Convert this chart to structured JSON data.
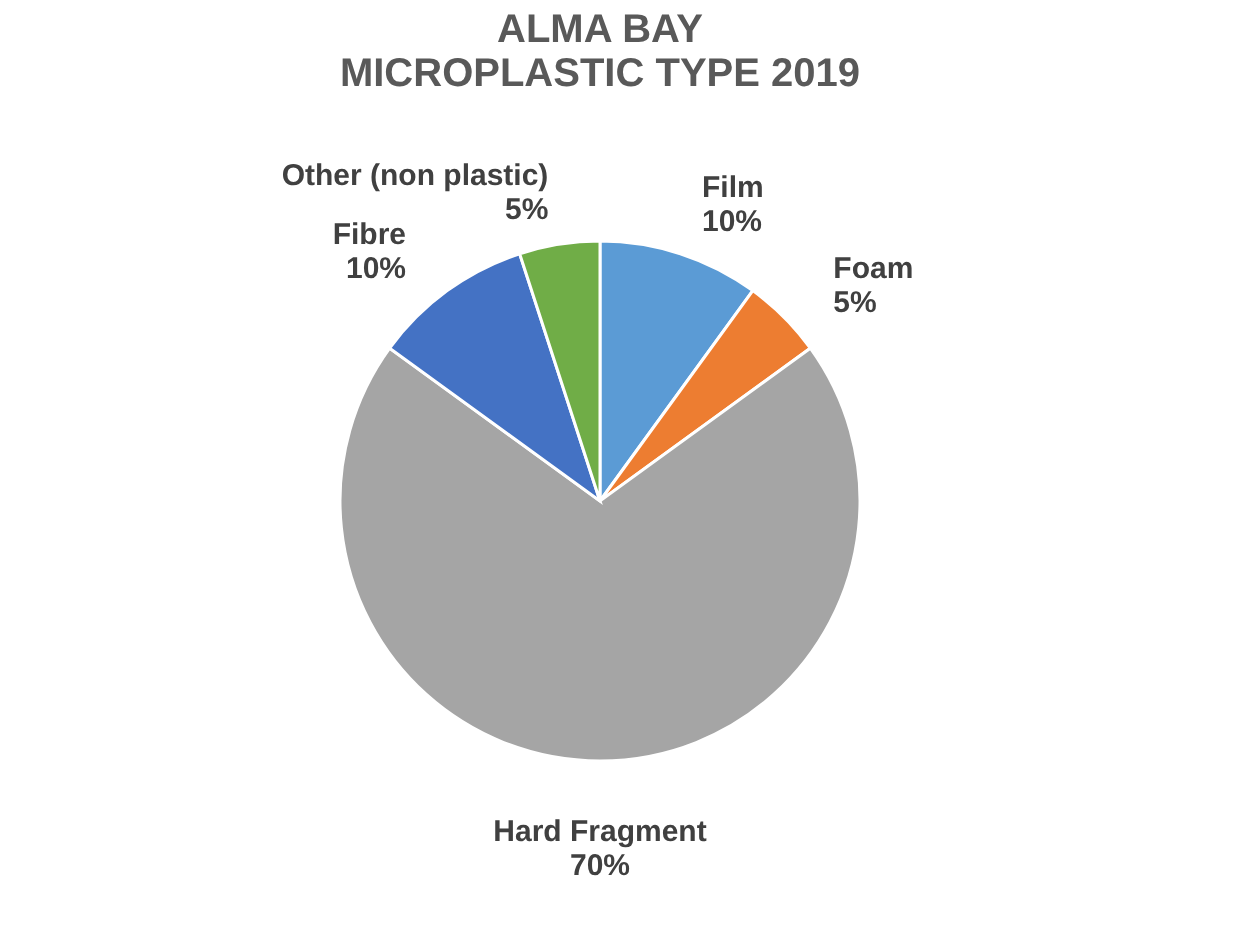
{
  "chart_data": {
    "type": "pie",
    "title": [
      "ALMA BAY",
      "MICROPLASTIC TYPE 2019"
    ],
    "categories": [
      "Film",
      "Foam",
      "Hard Fragment",
      "Fibre",
      "Other (non plastic)"
    ],
    "values": [
      10,
      5,
      70,
      10,
      5
    ],
    "value_labels": [
      "10%",
      "5%",
      "70%",
      "10%",
      "5%"
    ],
    "colors": [
      "#5b9bd5",
      "#ed7d31",
      "#a5a5a5",
      "#4472c4",
      "#70ad47"
    ],
    "legend": false
  }
}
